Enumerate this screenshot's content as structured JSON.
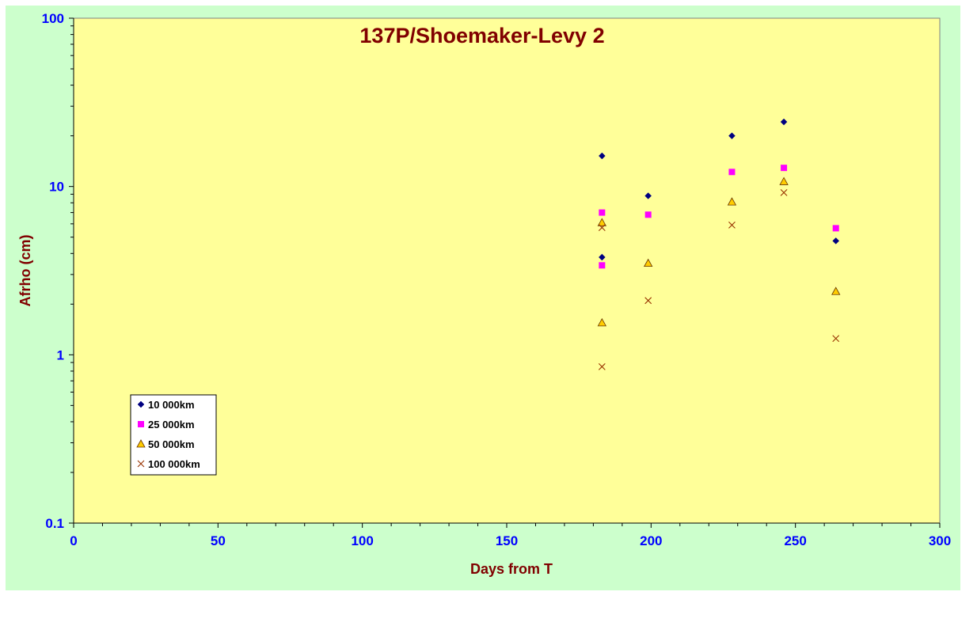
{
  "chart_data": {
    "type": "scatter",
    "title": "137P/Shoemaker-Levy 2",
    "xlabel": "Days from T",
    "ylabel": "Afrho (cm)",
    "xlim": [
      0,
      300
    ],
    "ylim": [
      0.1,
      100
    ],
    "yscale": "log",
    "xticks": [
      0,
      50,
      100,
      150,
      200,
      250,
      300
    ],
    "yticks": [
      0.1,
      1,
      10,
      100
    ],
    "ytick_labels": [
      "0.1",
      "1",
      "10",
      "100"
    ],
    "grid": false,
    "legend_position": "bottom-left",
    "colors": {
      "figure_background": "#ccffcc",
      "plot_background": "#ffff99",
      "tick_labels": "#0000ff",
      "titles": "#800000"
    },
    "series": [
      {
        "name": "10 000km",
        "marker": "diamond",
        "color": "#000080",
        "points": [
          [
            183,
            15.2
          ],
          [
            183,
            3.8
          ],
          [
            199,
            8.8
          ],
          [
            228,
            20
          ],
          [
            246,
            24.2
          ],
          [
            264,
            4.75
          ]
        ]
      },
      {
        "name": "25 000km",
        "marker": "square",
        "color": "#ff00ff",
        "points": [
          [
            183,
            7.0
          ],
          [
            183,
            3.4
          ],
          [
            199,
            6.8
          ],
          [
            228,
            12.2
          ],
          [
            246,
            12.9
          ],
          [
            264,
            5.65
          ]
        ]
      },
      {
        "name": "50 000km",
        "marker": "triangle",
        "color": "#ffcc00",
        "points": [
          [
            183,
            6.1
          ],
          [
            183,
            1.55
          ],
          [
            199,
            3.5
          ],
          [
            228,
            8.1
          ],
          [
            246,
            10.7
          ],
          [
            264,
            2.38
          ]
        ]
      },
      {
        "name": "100 000km",
        "marker": "x",
        "color": "#993300",
        "points": [
          [
            183,
            5.7
          ],
          [
            183,
            0.85
          ],
          [
            199,
            2.1
          ],
          [
            228,
            5.9
          ],
          [
            246,
            9.2
          ],
          [
            264,
            1.25
          ]
        ]
      }
    ]
  }
}
